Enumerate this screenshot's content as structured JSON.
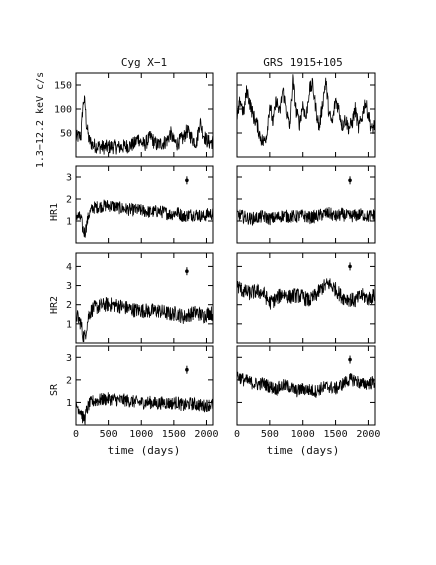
{
  "figure": {
    "ylabels": [
      "1.3−12.2 keV c/s",
      "HR1",
      "HR2",
      "SR"
    ],
    "xlabel": "time (days)"
  },
  "chart_data": [
    {
      "type": "line",
      "title": "Cyg X−1",
      "xlabel": "time (days)",
      "xlim": [
        0,
        2100
      ],
      "xticks": [
        0,
        500,
        1000,
        1500,
        2000
      ],
      "panels": [
        {
          "ylabel": "1.3−12.2 keV c/s",
          "ylim": [
            0,
            175
          ],
          "yticks": [
            50,
            100,
            150
          ],
          "marker": null,
          "series": {
            "x": [
              0,
              80,
              100,
              120,
              140,
              160,
              200,
              260,
              350,
              450,
              550,
              650,
              750,
              850,
              900,
              950,
              1000,
              1050,
              1100,
              1150,
              1200,
              1250,
              1300,
              1350,
              1400,
              1450,
              1500,
              1550,
              1600,
              1650,
              1700,
              1750,
              1800,
              1850,
              1900,
              1950,
              2000,
              2050,
              2100
            ],
            "y": [
              40,
              45,
              95,
              120,
              110,
              70,
              35,
              25,
              22,
              20,
              22,
              20,
              22,
              25,
              28,
              40,
              30,
              25,
              35,
              42,
              30,
              25,
              28,
              30,
              35,
              50,
              32,
              28,
              35,
              40,
              55,
              45,
              35,
              30,
              75,
              48,
              35,
              30,
              32
            ]
          }
        },
        {
          "ylabel": "HR1",
          "ylim": [
            0,
            3.5
          ],
          "yticks": [
            1,
            2,
            3
          ],
          "marker": {
            "x": 1700,
            "y": 2.85
          },
          "series": {
            "x": [
              0,
              80,
              100,
              120,
              140,
              160,
              200,
              260,
              350,
              450,
              550,
              650,
              750,
              850,
              950,
              1050,
              1150,
              1250,
              1350,
              1450,
              1550,
              1650,
              1750,
              1850,
              1950,
              2050,
              2100
            ],
            "y": [
              1.3,
              1.1,
              0.7,
              0.5,
              0.5,
              0.8,
              1.3,
              1.6,
              1.65,
              1.7,
              1.7,
              1.6,
              1.55,
              1.5,
              1.5,
              1.45,
              1.4,
              1.45,
              1.4,
              1.3,
              1.4,
              1.2,
              1.3,
              1.3,
              1.2,
              1.35,
              1.3
            ]
          }
        },
        {
          "ylabel": "HR2",
          "ylim": [
            0,
            4.7
          ],
          "yticks": [
            1,
            2,
            3,
            4
          ],
          "marker": {
            "x": 1700,
            "y": 3.75
          },
          "series": {
            "x": [
              0,
              80,
              100,
              120,
              140,
              160,
              200,
              260,
              350,
              450,
              550,
              650,
              750,
              850,
              950,
              1050,
              1150,
              1250,
              1350,
              1450,
              1550,
              1650,
              1750,
              1850,
              1950,
              2050,
              2100
            ],
            "y": [
              1.5,
              1.0,
              0.5,
              0.35,
              0.35,
              0.8,
              1.5,
              1.8,
              1.9,
              2.0,
              2.0,
              1.95,
              1.85,
              1.75,
              1.7,
              1.7,
              1.65,
              1.7,
              1.6,
              1.5,
              1.55,
              1.35,
              1.5,
              1.6,
              1.4,
              1.6,
              1.5
            ]
          }
        },
        {
          "ylabel": "SR",
          "ylim": [
            0,
            3.5
          ],
          "yticks": [
            1,
            2,
            3
          ],
          "marker": {
            "x": 1700,
            "y": 2.45
          },
          "series": {
            "x": [
              0,
              80,
              100,
              120,
              140,
              160,
              200,
              260,
              350,
              450,
              550,
              650,
              750,
              850,
              950,
              1050,
              1150,
              1250,
              1350,
              1450,
              1550,
              1650,
              1750,
              1850,
              1950,
              2050,
              2100
            ],
            "y": [
              0.9,
              0.6,
              0.35,
              0.3,
              0.3,
              0.6,
              0.9,
              1.05,
              1.1,
              1.15,
              1.15,
              1.1,
              1.1,
              1.05,
              1.0,
              1.0,
              1.0,
              0.95,
              1.0,
              0.95,
              1.0,
              0.85,
              0.95,
              0.9,
              0.85,
              0.9,
              0.9
            ]
          }
        }
      ]
    },
    {
      "type": "line",
      "title": "GRS 1915+105",
      "xlabel": "time (days)",
      "xlim": [
        0,
        2100
      ],
      "xticks": [
        0,
        500,
        1000,
        1500,
        2000
      ],
      "panels": [
        {
          "ylabel": "1.3−12.2 keV c/s",
          "ylim": [
            0,
            175
          ],
          "yticks": [
            50,
            100,
            150
          ],
          "marker": null,
          "series": {
            "x": [
              0,
              50,
              100,
              150,
              200,
              250,
              300,
              350,
              400,
              450,
              500,
              550,
              600,
              650,
              700,
              750,
              800,
              850,
              900,
              950,
              1000,
              1050,
              1100,
              1150,
              1200,
              1250,
              1300,
              1350,
              1400,
              1450,
              1500,
              1550,
              1600,
              1650,
              1700,
              1750,
              1800,
              1850,
              1900,
              1950,
              2000,
              2050,
              2100
            ],
            "y": [
              75,
              120,
              90,
              140,
              110,
              85,
              70,
              45,
              30,
              45,
              110,
              70,
              120,
              90,
              140,
              100,
              60,
              160,
              95,
              70,
              110,
              80,
              140,
              150,
              100,
              60,
              110,
              160,
              90,
              70,
              120,
              100,
              65,
              80,
              60,
              70,
              100,
              60,
              80,
              115,
              90,
              55,
              70
            ]
          }
        },
        {
          "ylabel": "HR1",
          "ylim": [
            0,
            3.5
          ],
          "yticks": [
            1,
            2,
            3
          ],
          "marker": {
            "x": 1720,
            "y": 2.85
          },
          "series": {
            "x": [
              0,
              100,
              200,
              300,
              400,
              500,
              600,
              700,
              800,
              900,
              1000,
              1100,
              1200,
              1300,
              1400,
              1500,
              1600,
              1700,
              1800,
              1900,
              2000,
              2100
            ],
            "y": [
              1.3,
              1.2,
              1.1,
              1.15,
              1.2,
              1.1,
              1.15,
              1.25,
              1.2,
              1.2,
              1.25,
              1.15,
              1.2,
              1.3,
              1.35,
              1.2,
              1.3,
              1.2,
              1.25,
              1.3,
              1.2,
              1.3
            ]
          }
        },
        {
          "ylabel": "HR2",
          "ylim": [
            0,
            4.7
          ],
          "yticks": [
            1,
            2,
            3,
            4
          ],
          "marker": {
            "x": 1720,
            "y": 4.0
          },
          "series": {
            "x": [
              0,
              100,
              200,
              300,
              400,
              500,
              600,
              700,
              800,
              900,
              1000,
              1100,
              1200,
              1300,
              1400,
              1500,
              1600,
              1700,
              1800,
              1900,
              2000,
              2100
            ],
            "y": [
              3.0,
              2.7,
              2.6,
              2.7,
              2.6,
              2.1,
              2.3,
              2.6,
              2.4,
              2.5,
              2.4,
              2.2,
              2.5,
              2.9,
              3.1,
              2.8,
              2.4,
              2.3,
              2.2,
              2.5,
              2.3,
              2.5
            ]
          }
        },
        {
          "ylabel": "SR",
          "ylim": [
            0,
            3.5
          ],
          "yticks": [
            1,
            2,
            3
          ],
          "marker": {
            "x": 1720,
            "y": 2.9
          },
          "series": {
            "x": [
              0,
              100,
              200,
              300,
              400,
              500,
              600,
              700,
              800,
              900,
              1000,
              1100,
              1200,
              1300,
              1400,
              1500,
              1600,
              1700,
              1800,
              1900,
              2000,
              2100
            ],
            "y": [
              2.2,
              2.0,
              1.9,
              1.8,
              1.85,
              1.7,
              1.6,
              1.75,
              1.7,
              1.5,
              1.6,
              1.55,
              1.5,
              1.65,
              1.7,
              1.6,
              1.8,
              2.0,
              2.0,
              1.8,
              1.85,
              1.9
            ]
          }
        }
      ]
    }
  ]
}
